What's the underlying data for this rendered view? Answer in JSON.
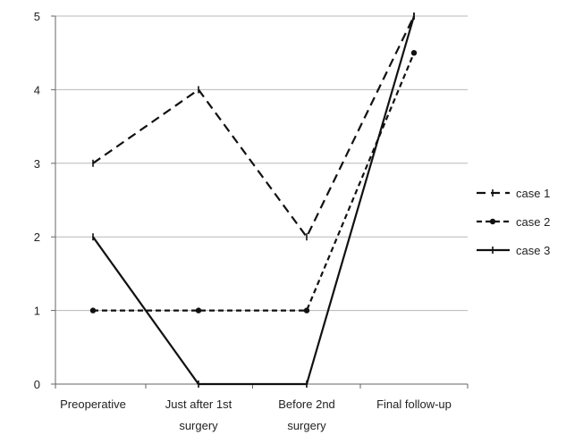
{
  "chart_data": {
    "type": "line",
    "categories": [
      [
        "Preoperative"
      ],
      [
        "Just after 1st",
        "surgery"
      ],
      [
        "Before 2nd",
        "surgery"
      ],
      [
        "Final follow-up"
      ]
    ],
    "ylim": [
      0,
      5
    ],
    "yticks": [
      "0",
      "1",
      "2",
      "3",
      "4",
      "5"
    ],
    "grid": true,
    "legend_position": "right",
    "series": [
      {
        "name": "case 1",
        "values": [
          3,
          4,
          2,
          5
        ],
        "line_style": "dashed",
        "marker": "tick",
        "color": "#111111"
      },
      {
        "name": "case 2",
        "values": [
          1,
          1,
          1,
          4.5
        ],
        "line_style": "dashed-fine",
        "marker": "dot",
        "color": "#111111"
      },
      {
        "name": "case 3",
        "values": [
          2,
          0,
          0,
          5
        ],
        "line_style": "solid",
        "marker": "tick",
        "color": "#111111"
      }
    ],
    "colors": {
      "grid": "#b8b8b8",
      "axis": "#666666"
    }
  }
}
